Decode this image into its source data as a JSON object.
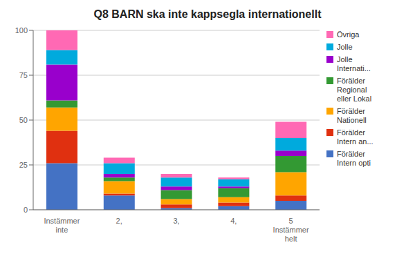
{
  "chart_data": {
    "type": "bar",
    "stacked": true,
    "title": "Q8 BARN ska inte kappsegla internationellt",
    "categories": [
      "Instämmer\ninte",
      "2,",
      "3,",
      "4,",
      "5\nInstämmer\nhelt"
    ],
    "series": [
      {
        "name": "Förälder\nIntern opti",
        "color": "#4472C4",
        "values": [
          26,
          8,
          1,
          2,
          5
        ]
      },
      {
        "name": "Förälder\nIntern an...",
        "color": "#E03010",
        "values": [
          18,
          1,
          2,
          2,
          3
        ]
      },
      {
        "name": "Förälder\nNationell",
        "color": "#FFA500",
        "values": [
          13,
          7,
          3,
          3,
          13
        ]
      },
      {
        "name": "Förälder\nRegional\neller Lokal",
        "color": "#339933",
        "values": [
          4,
          2,
          5,
          5,
          9
        ]
      },
      {
        "name": "Jolle\nInternati...",
        "color": "#9900CC",
        "values": [
          20,
          2,
          2,
          1,
          3
        ]
      },
      {
        "name": "Jolle",
        "color": "#00AADD",
        "values": [
          8,
          6,
          5,
          4,
          7
        ]
      },
      {
        "name": "Övriga",
        "color": "#FF69B4",
        "values": [
          11,
          3,
          2,
          1,
          9
        ]
      }
    ],
    "ylim": [
      0,
      100
    ],
    "yticks": [
      0,
      25,
      50,
      75,
      100
    ],
    "grid": true,
    "legend": "right"
  }
}
